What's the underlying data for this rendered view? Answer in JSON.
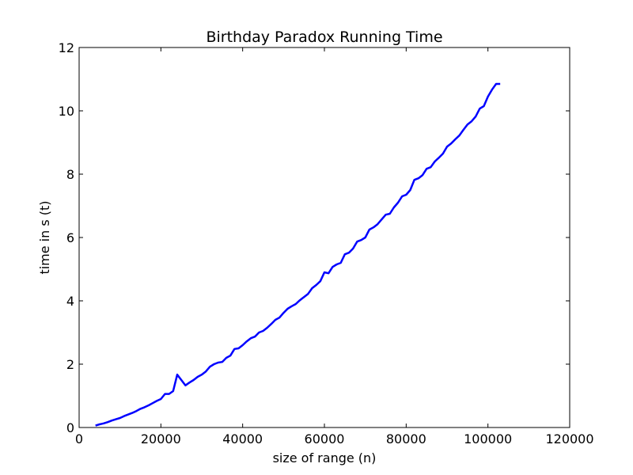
{
  "colors": {
    "line": "#0000ff",
    "axes": "#000000",
    "background": "#ffffff"
  },
  "chart_data": {
    "type": "line",
    "title": "Birthday Paradox Running Time",
    "xlabel": "size of range (n)",
    "ylabel": "time in s (t)",
    "xlim": [
      0,
      120000
    ],
    "ylim": [
      0,
      12
    ],
    "xticks": [
      0,
      20000,
      40000,
      60000,
      80000,
      100000,
      120000
    ],
    "yticks": [
      0,
      2,
      4,
      6,
      8,
      10,
      12
    ],
    "grid": false,
    "legend": "none",
    "series": [
      {
        "x": [
          4000,
          5000,
          6000,
          7000,
          8000,
          9000,
          10000,
          11000,
          12000,
          13000,
          14000,
          15000,
          16000,
          17000,
          18000,
          19000,
          20000,
          21000,
          22000,
          23000,
          24000,
          25000,
          26000,
          27000,
          28000,
          29000,
          30000,
          31000,
          32000,
          33000,
          34000,
          35000,
          36000,
          37000,
          38000,
          39000,
          40000,
          41000,
          42000,
          43000,
          44000,
          45000,
          46000,
          47000,
          48000,
          49000,
          50000,
          51000,
          52000,
          53000,
          54000,
          55000,
          56000,
          57000,
          58000,
          59000,
          60000,
          61000,
          62000,
          63000,
          64000,
          65000,
          66000,
          67000,
          68000,
          69000,
          70000,
          71000,
          72000,
          73000,
          74000,
          75000,
          76000,
          77000,
          78000,
          79000,
          80000,
          81000,
          82000,
          83000,
          84000,
          85000,
          86000,
          87000,
          88000,
          89000,
          90000,
          91000,
          92000,
          93000,
          94000,
          95000,
          96000,
          97000,
          98000,
          99000,
          100000,
          101000,
          102000,
          103000
        ],
        "y": [
          0.06,
          0.1,
          0.13,
          0.17,
          0.22,
          0.26,
          0.3,
          0.36,
          0.41,
          0.46,
          0.52,
          0.59,
          0.64,
          0.7,
          0.77,
          0.84,
          0.9,
          1.06,
          1.06,
          1.15,
          1.67,
          1.5,
          1.33,
          1.42,
          1.5,
          1.6,
          1.67,
          1.77,
          1.92,
          2.0,
          2.05,
          2.07,
          2.2,
          2.27,
          2.48,
          2.5,
          2.6,
          2.72,
          2.82,
          2.87,
          3.0,
          3.05,
          3.15,
          3.27,
          3.4,
          3.47,
          3.62,
          3.75,
          3.83,
          3.9,
          4.02,
          4.12,
          4.22,
          4.4,
          4.5,
          4.62,
          4.9,
          4.87,
          5.07,
          5.15,
          5.2,
          5.47,
          5.52,
          5.65,
          5.87,
          5.92,
          6.0,
          6.25,
          6.32,
          6.42,
          6.57,
          6.72,
          6.75,
          6.95,
          7.1,
          7.3,
          7.35,
          7.5,
          7.82,
          7.87,
          7.97,
          8.17,
          8.22,
          8.4,
          8.52,
          8.65,
          8.87,
          8.97,
          9.1,
          9.22,
          9.4,
          9.57,
          9.67,
          9.82,
          10.07,
          10.15,
          10.45,
          10.67,
          10.85,
          10.85
        ]
      }
    ]
  }
}
